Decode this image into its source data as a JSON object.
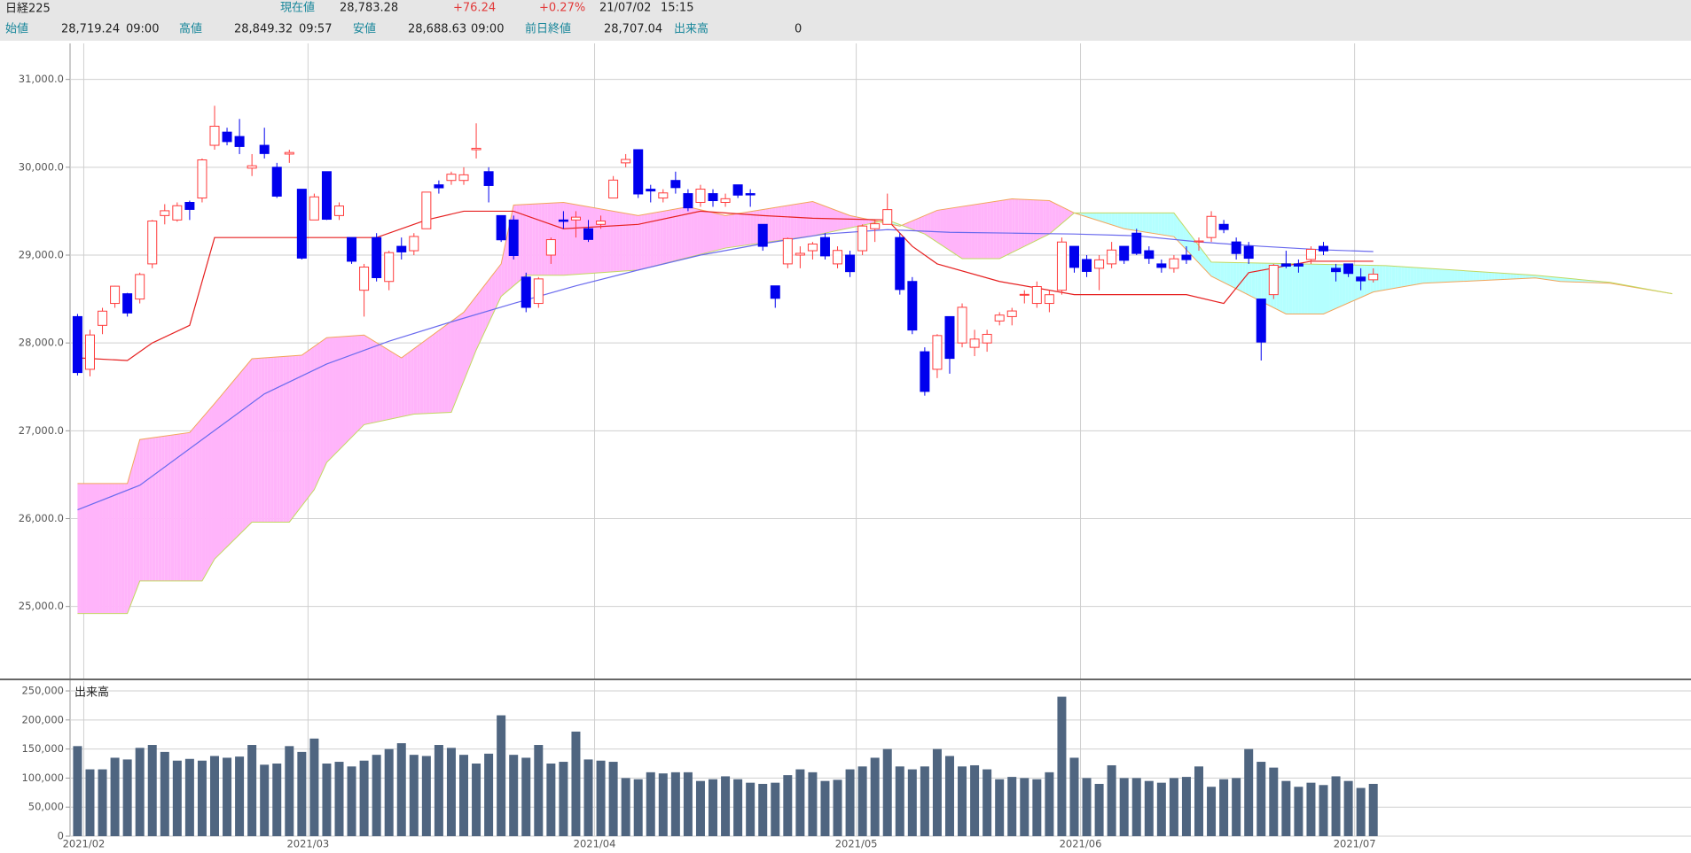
{
  "header": {
    "title": "日経225",
    "row1": [
      "現在値",
      "28,783.28",
      "+76.24",
      "+0.27%",
      "21/07/02",
      "15:15"
    ],
    "row2": [
      "始値",
      "28,719.24",
      "09:00",
      "高値",
      "28,849.32",
      "09:57",
      "安値",
      "28,688.63",
      "09:00",
      "前日終値",
      "28,707.04",
      "出来高",
      "0"
    ]
  },
  "chart_data": [
    {
      "type": "candlestick",
      "up_color": "#ff3c3c",
      "down_color": "#0000ee",
      "grid": true,
      "xlim": [
        -0.6,
        129.5
      ],
      "xticks": [
        0.5,
        18.5,
        41.5,
        62.5,
        80.5,
        102.5
      ],
      "ylim": [
        24180,
        31410
      ],
      "yticks": [
        {
          "value": 25000,
          "label": "25,000.0"
        },
        {
          "value": 26000,
          "label": "26,000.0"
        },
        {
          "value": 27000,
          "label": "27,000.0"
        },
        {
          "value": 28000,
          "label": "28,000.0"
        },
        {
          "value": 29000,
          "label": "29,000.0"
        },
        {
          "value": 30000,
          "label": "30,000.0"
        },
        {
          "value": 31000,
          "label": "31,000.0"
        }
      ],
      "open": [
        28300,
        27700,
        28200,
        28450,
        28560,
        28500,
        28900,
        29450,
        29400,
        29600,
        29650,
        30250,
        30400,
        30350,
        29990,
        30250,
        30000,
        30150,
        29750,
        29400,
        29950,
        29450,
        29200,
        28600,
        29200,
        28700,
        29100,
        29050,
        29300,
        29800,
        29850,
        29850,
        30200,
        29950,
        29450,
        29400,
        28750,
        28450,
        29000,
        29400,
        29400,
        29300,
        29350,
        29650,
        30050,
        30200,
        29750,
        29650,
        29850,
        29700,
        29600,
        29700,
        29600,
        29800,
        29700,
        29350,
        28650,
        28900,
        29000,
        29050,
        29200,
        28900,
        29000,
        29050,
        29300,
        29350,
        29200,
        28700,
        27900,
        27700,
        28300,
        28000,
        27950,
        28000,
        28250,
        28300,
        28550,
        28450,
        28450,
        28600,
        29100,
        28950,
        28850,
        28900,
        29100,
        29250,
        29050,
        28900,
        28850,
        29000,
        29150,
        29200,
        29350,
        29150,
        29100,
        28500,
        28550,
        28900,
        28900,
        28950,
        29100,
        28850,
        28900,
        28750,
        28719
      ],
      "high": [
        28330,
        28150,
        28400,
        28650,
        28570,
        28800,
        29400,
        29580,
        29600,
        29620,
        30100,
        30700,
        30450,
        30550,
        30150,
        30450,
        30050,
        30200,
        29750,
        29700,
        29950,
        29600,
        29200,
        28900,
        29250,
        29050,
        29200,
        29250,
        29700,
        29850,
        29950,
        30000,
        30500,
        30000,
        29450,
        29450,
        28800,
        28750,
        29200,
        29500,
        29500,
        29400,
        29450,
        29900,
        30150,
        30200,
        29800,
        29750,
        29950,
        29750,
        29800,
        29750,
        29700,
        29800,
        29750,
        29350,
        28650,
        29200,
        29100,
        29150,
        29250,
        29100,
        29050,
        29350,
        29400,
        29700,
        29250,
        28750,
        27950,
        28100,
        28300,
        28450,
        28150,
        28150,
        28350,
        28400,
        28600,
        28700,
        28600,
        29200,
        29100,
        29000,
        29000,
        29150,
        29100,
        29300,
        29100,
        28950,
        29000,
        29100,
        29200,
        29500,
        29400,
        29200,
        29150,
        28500,
        28900,
        29050,
        28950,
        29100,
        29150,
        28900,
        28900,
        28850,
        28849
      ],
      "low": [
        27630,
        27620,
        28100,
        28400,
        28300,
        28450,
        28850,
        29350,
        29380,
        29400,
        29600,
        30200,
        30250,
        30150,
        29900,
        30100,
        29650,
        30050,
        28950,
        29400,
        29400,
        29400,
        28900,
        28300,
        28700,
        28600,
        28950,
        29000,
        29300,
        29700,
        29800,
        29800,
        30100,
        29600,
        29150,
        28950,
        28350,
        28400,
        28900,
        29300,
        29200,
        29150,
        29300,
        29650,
        30000,
        29650,
        29600,
        29600,
        29700,
        29500,
        29550,
        29550,
        29550,
        29650,
        29550,
        29050,
        28400,
        28850,
        28850,
        28950,
        28950,
        28850,
        28750,
        29000,
        29150,
        29350,
        28550,
        28100,
        27400,
        27600,
        27650,
        27950,
        27850,
        27900,
        28200,
        28200,
        28450,
        28400,
        28350,
        28550,
        28800,
        28750,
        28600,
        28850,
        28900,
        29000,
        28900,
        28800,
        28800,
        28900,
        29050,
        29150,
        29250,
        28950,
        28900,
        27800,
        28500,
        28850,
        28800,
        28900,
        29000,
        28700,
        28750,
        28600,
        28688
      ],
      "close": [
        27663,
        28091,
        28362,
        28646,
        28341,
        28779,
        29388,
        29505,
        29562,
        29520,
        30084,
        30467,
        30292,
        30236,
        30017,
        30156,
        29671,
        30168,
        28966,
        29663,
        29408,
        29559,
        28930,
        28864,
        28743,
        29028,
        29036,
        29212,
        29717,
        29766,
        29921,
        29914,
        30216,
        29792,
        29174,
        28995,
        28405,
        28729,
        29176,
        29384,
        29432,
        29178,
        29388,
        29854,
        30089,
        29696,
        29730,
        29708,
        29768,
        29538,
        29751,
        29620,
        29642,
        29683,
        29685,
        29100,
        28508,
        29188,
        29020,
        29126,
        28991,
        29053,
        28812,
        29331,
        29357,
        29518,
        28608,
        28147,
        27448,
        28084,
        27824,
        28406,
        28044,
        28098,
        28317,
        28364,
        28553,
        28642,
        28549,
        29149,
        28860,
        28814,
        28946,
        29058,
        28941,
        29019,
        28963,
        28860,
        28958,
        28948,
        29161,
        29441,
        29291,
        29018,
        28964,
        28010,
        28884,
        28874,
        28875,
        29066,
        29048,
        28812,
        28791,
        28707,
        28783
      ],
      "cloud": {
        "up_color": "#ffb4fa",
        "down_color": "#b4ffff",
        "span_a": {
          "color": "#f2a55a",
          "x": [
            0,
            4,
            5,
            9,
            11,
            14,
            18,
            20,
            23,
            26,
            31,
            34,
            35,
            39,
            45,
            49,
            52,
            59,
            62,
            66,
            69,
            75,
            78,
            80,
            84,
            88,
            91,
            97,
            100,
            104,
            108,
            117,
            119,
            123,
            128
          ],
          "values": [
            26400,
            26400,
            26900,
            26980,
            27310,
            27820,
            27860,
            28060,
            28090,
            27830,
            28350,
            28900,
            29570,
            29600,
            29450,
            29550,
            29450,
            29610,
            29450,
            29330,
            29510,
            29640,
            29620,
            29480,
            29300,
            29210,
            28760,
            28330,
            28330,
            28580,
            28680,
            28740,
            28700,
            28680,
            28560
          ]
        },
        "span_b": {
          "color": "#c2d860",
          "x": [
            0,
            4,
            5,
            10,
            11,
            14,
            17,
            19,
            20,
            23,
            27,
            30,
            32,
            34,
            36,
            39,
            45,
            52,
            59,
            65,
            68,
            71,
            74,
            78,
            80,
            88,
            91,
            105,
            117,
            123,
            128
          ],
          "values": [
            24920,
            24920,
            25290,
            25290,
            25540,
            25960,
            25960,
            26330,
            26640,
            27070,
            27190,
            27210,
            27920,
            28530,
            28770,
            28770,
            28830,
            29080,
            29220,
            29400,
            29240,
            28960,
            28960,
            29240,
            29480,
            29480,
            28920,
            28880,
            28770,
            28690,
            28560
          ]
        }
      },
      "lines": [
        {
          "color": "#6a6aee",
          "x": [
            0,
            5,
            10,
            15,
            20,
            25,
            30,
            35,
            40,
            45,
            50,
            55,
            60,
            65,
            70,
            75,
            80,
            85,
            90,
            95,
            100,
            104
          ],
          "values": [
            26100,
            26380,
            26900,
            27420,
            27760,
            28020,
            28240,
            28450,
            28650,
            28830,
            29000,
            29130,
            29240,
            29290,
            29260,
            29250,
            29240,
            29220,
            29150,
            29100,
            29060,
            29040
          ]
        },
        {
          "color": "#e62020",
          "x": [
            0,
            4,
            6,
            9,
            11,
            18,
            24,
            28,
            31,
            35,
            39,
            45,
            50,
            55,
            59,
            65,
            67,
            69,
            74,
            80,
            89,
            92,
            94,
            99,
            104
          ],
          "values": [
            27830,
            27800,
            28000,
            28200,
            29200,
            29200,
            29200,
            29400,
            29500,
            29500,
            29300,
            29350,
            29500,
            29450,
            29420,
            29400,
            29100,
            28900,
            28700,
            28550,
            28550,
            28450,
            28800,
            28930,
            28930
          ]
        }
      ]
    },
    {
      "type": "bar",
      "title": "出来高",
      "color": "#4f6580",
      "grid": true,
      "xlim": [
        -0.6,
        129.5
      ],
      "xticks": [
        {
          "value": 0.5,
          "label": "2021/02"
        },
        {
          "value": 18.5,
          "label": "2021/03"
        },
        {
          "value": 41.5,
          "label": "2021/04"
        },
        {
          "value": 62.5,
          "label": "2021/05"
        },
        {
          "value": 80.5,
          "label": "2021/06"
        },
        {
          "value": 102.5,
          "label": "2021/07"
        }
      ],
      "ylim": [
        0,
        266800
      ],
      "yticks": [
        0,
        {
          "value": 50000,
          "label": "50,000"
        },
        {
          "value": 100000,
          "label": "100,000"
        },
        {
          "value": 150000,
          "label": "150,000"
        },
        {
          "value": 200000,
          "label": "200,000"
        },
        {
          "value": 250000,
          "label": "250,000"
        }
      ],
      "values": [
        155000,
        115000,
        115000,
        135000,
        132000,
        152000,
        157000,
        145000,
        130000,
        133000,
        130000,
        138000,
        135000,
        137000,
        157000,
        123000,
        125000,
        155000,
        145000,
        168000,
        125000,
        128000,
        120000,
        130000,
        140000,
        150000,
        160000,
        140000,
        138000,
        157000,
        152000,
        140000,
        125000,
        142000,
        208000,
        140000,
        135000,
        157000,
        125000,
        128000,
        180000,
        132000,
        130000,
        128000,
        100000,
        98000,
        110000,
        108000,
        110000,
        110000,
        95000,
        98000,
        103000,
        98000,
        92000,
        90000,
        92000,
        105000,
        115000,
        110000,
        95000,
        97000,
        115000,
        120000,
        135000,
        150000,
        120000,
        115000,
        120000,
        150000,
        138000,
        120000,
        122000,
        115000,
        98000,
        102000,
        100000,
        98000,
        110000,
        240000,
        135000,
        100000,
        90000,
        122000,
        100000,
        100000,
        95000,
        92000,
        100000,
        102000,
        120000,
        85000,
        98000,
        100000,
        150000,
        128000,
        118000,
        95000,
        85000,
        92000,
        88000,
        103000,
        95000,
        83000,
        90000
      ]
    }
  ]
}
